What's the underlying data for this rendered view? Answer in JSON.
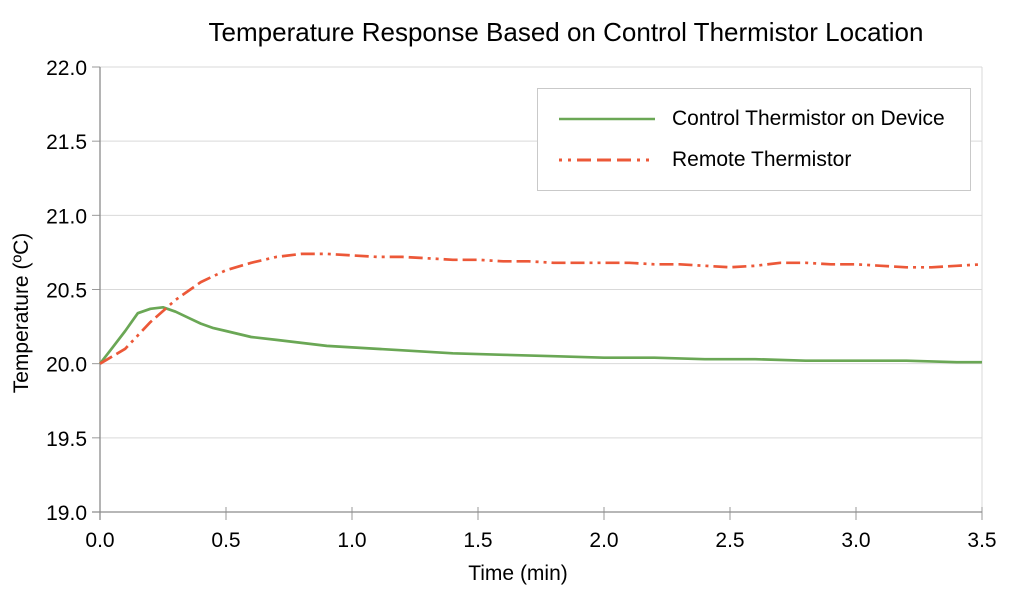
{
  "chart_data": {
    "type": "line",
    "title": "Temperature Response Based on Control Thermistor Location",
    "xlabel": "Time (min)",
    "ylabel": "Temperature (ºC)",
    "xlim": [
      0.0,
      3.5
    ],
    "ylim": [
      19.0,
      22.0
    ],
    "xticks": [
      0.0,
      0.5,
      1.0,
      1.5,
      2.0,
      2.5,
      3.0,
      3.5
    ],
    "yticks": [
      19.0,
      19.5,
      20.0,
      20.5,
      21.0,
      21.5,
      22.0
    ],
    "grid": "horizontal-only",
    "legend_position": "top-right-inside",
    "series": [
      {
        "name": "Control Thermistor on Device",
        "color": "#6aa755",
        "line_style": "solid",
        "x": [
          0.0,
          0.05,
          0.1,
          0.15,
          0.2,
          0.25,
          0.3,
          0.35,
          0.4,
          0.45,
          0.5,
          0.6,
          0.7,
          0.8,
          0.9,
          1.0,
          1.2,
          1.4,
          1.6,
          1.8,
          2.0,
          2.2,
          2.4,
          2.6,
          2.8,
          3.0,
          3.2,
          3.4,
          3.5
        ],
        "y": [
          20.0,
          20.11,
          20.22,
          20.34,
          20.37,
          20.38,
          20.35,
          20.31,
          20.27,
          20.24,
          20.22,
          20.18,
          20.16,
          20.14,
          20.12,
          20.11,
          20.09,
          20.07,
          20.06,
          20.05,
          20.04,
          20.04,
          20.03,
          20.03,
          20.02,
          20.02,
          20.02,
          20.01,
          20.01
        ]
      },
      {
        "name": "Remote Thermistor",
        "color": "#ec5838",
        "line_style": "dash-dash-dot-dot",
        "x": [
          0.0,
          0.1,
          0.2,
          0.3,
          0.4,
          0.5,
          0.6,
          0.7,
          0.8,
          0.9,
          1.0,
          1.1,
          1.2,
          1.3,
          1.4,
          1.5,
          1.6,
          1.7,
          1.8,
          1.9,
          2.0,
          2.1,
          2.2,
          2.3,
          2.4,
          2.5,
          2.6,
          2.7,
          2.8,
          2.9,
          3.0,
          3.1,
          3.2,
          3.3,
          3.4,
          3.5
        ],
        "y": [
          20.0,
          20.1,
          20.28,
          20.43,
          20.55,
          20.63,
          20.68,
          20.72,
          20.74,
          20.74,
          20.73,
          20.72,
          20.72,
          20.71,
          20.7,
          20.7,
          20.69,
          20.69,
          20.68,
          20.68,
          20.68,
          20.68,
          20.67,
          20.67,
          20.66,
          20.65,
          20.66,
          20.68,
          20.68,
          20.67,
          20.67,
          20.66,
          20.65,
          20.65,
          20.66,
          20.67
        ]
      }
    ]
  },
  "colors": {
    "background": "#ffffff",
    "gridline": "#d9d9d9",
    "axis": "#8c8c8c",
    "tick": "#9a9a9a",
    "text": "#000000",
    "legend_border": "#c9c9c9"
  }
}
